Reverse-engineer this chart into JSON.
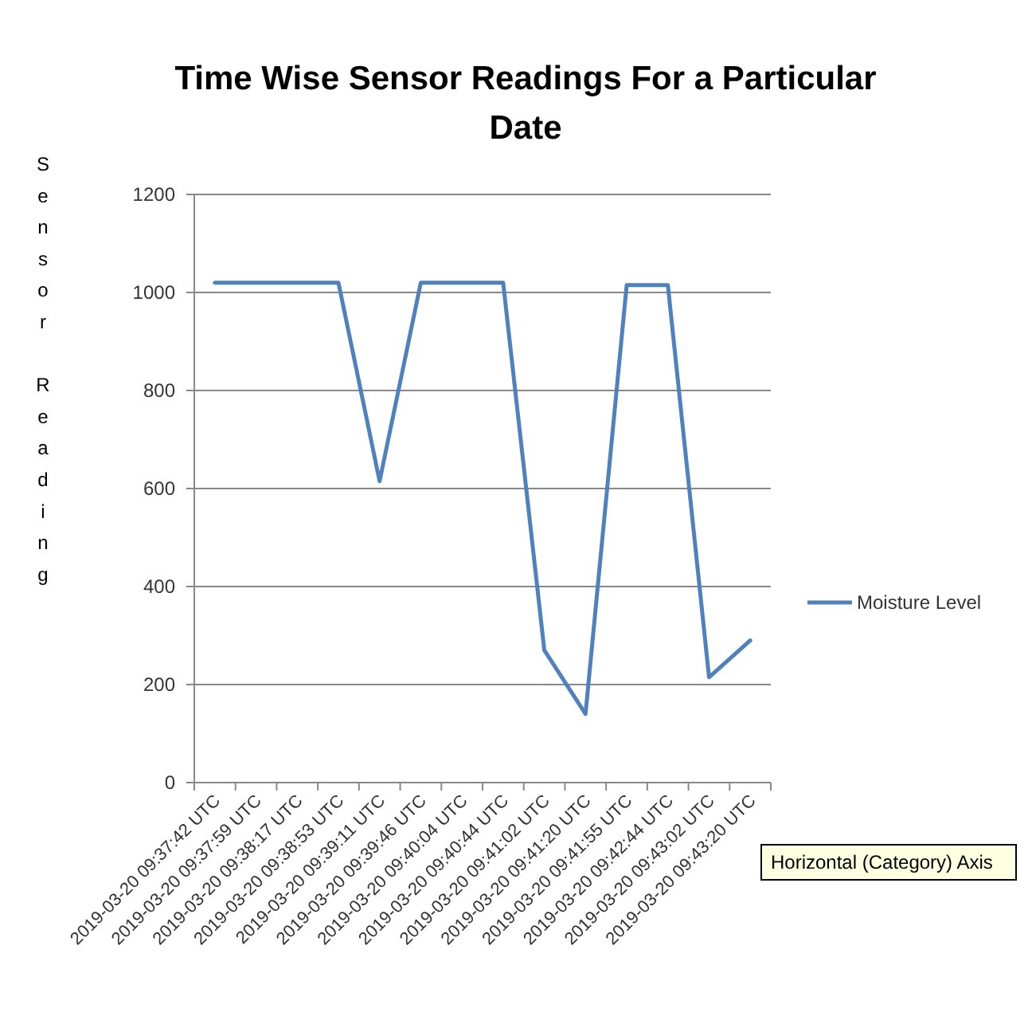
{
  "chart_data": {
    "type": "line",
    "title": "Time Wise Sensor Readings For a Particular Date",
    "ylabel": "Sensor Reading",
    "categories": [
      "2019-03-20 09:37:42 UTC",
      "2019-03-20 09:37:59 UTC",
      "2019-03-20 09:38:17 UTC",
      "2019-03-20 09:38:53 UTC",
      "2019-03-20 09:39:11 UTC",
      "2019-03-20 09:39:46 UTC",
      "2019-03-20 09:40:04 UTC",
      "2019-03-20 09:40:44 UTC",
      "2019-03-20 09:41:02 UTC",
      "2019-03-20 09:41:20 UTC",
      "2019-03-20 09:41:55 UTC",
      "2019-03-20 09:42:44 UTC",
      "2019-03-20 09:43:02 UTC",
      "2019-03-20 09:43:20 UTC"
    ],
    "series": [
      {
        "name": "Moisture Level",
        "color": "#4f81bd",
        "values": [
          1020,
          1020,
          1020,
          1020,
          615,
          1020,
          1020,
          1020,
          270,
          140,
          1015,
          1015,
          215,
          290
        ]
      }
    ],
    "ylim": [
      0,
      1200
    ],
    "yticks": [
      0,
      200,
      400,
      600,
      800,
      1000,
      1200
    ],
    "grid": "y",
    "legend": "right",
    "marker": "none",
    "line_style": "solid",
    "annotations": [
      "Horizontal (Category) Axis"
    ]
  }
}
